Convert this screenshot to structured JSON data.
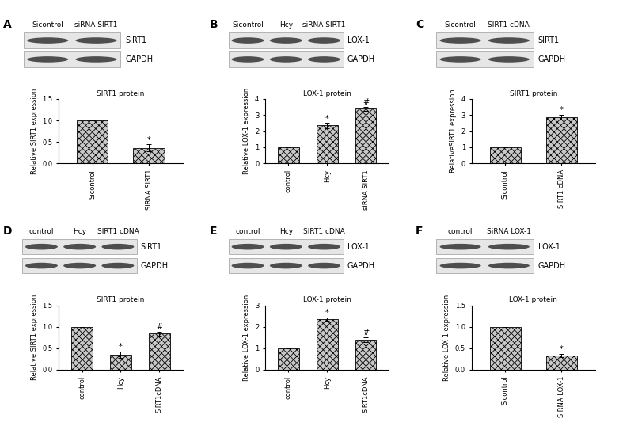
{
  "chart_data": [
    {
      "type": "bar",
      "title": "SIRT1 protein",
      "y_label": "Relative SIRT1 expression",
      "categories": [
        "Sicontrol",
        "SiRNA SIRT1"
      ],
      "values": [
        1.0,
        0.36
      ],
      "errors": [
        0,
        0.08
      ],
      "color": "#c8c8c8",
      "ylim": [
        0,
        1.5
      ],
      "yticks": [
        {
          "value": 0,
          "label": "0.0"
        },
        {
          "value": 0.5,
          "label": "0.5"
        },
        {
          "value": 1.0,
          "label": "1.0"
        },
        {
          "value": 1.5,
          "label": "1.5"
        }
      ],
      "annotations": {
        "panel": "A",
        "lanes": [
          "Sicontrol",
          "siRNA SIRT1"
        ],
        "bands": [
          "SIRT1",
          "GAPDH"
        ],
        "significance": [
          null,
          "*"
        ]
      }
    },
    {
      "type": "bar",
      "title": "LOX-1 protein",
      "y_label": "Relative LOX-1 expression",
      "categories": [
        "control",
        "Hcy",
        "siRNA SIRT1"
      ],
      "values": [
        1.0,
        2.35,
        3.4
      ],
      "errors": [
        0,
        0.15,
        0.12
      ],
      "color": "#c8c8c8",
      "ylim": [
        0,
        4
      ],
      "yticks": [
        0,
        1,
        2,
        3,
        4
      ],
      "annotations": {
        "panel": "B",
        "lanes": [
          "Sicontrol",
          "Hcy",
          "siRNA SIRT1"
        ],
        "bands": [
          "LOX-1",
          "GAPDH"
        ],
        "significance": [
          null,
          "*",
          "#"
        ]
      }
    },
    {
      "type": "bar",
      "title": "SIRT1 protein",
      "y_label": "RelativeSIRT1 expression",
      "categories": [
        "Sicontrol",
        "SIRT1 cDNA"
      ],
      "values": [
        1.0,
        2.88
      ],
      "errors": [
        0,
        0.15
      ],
      "color": "#c8c8c8",
      "ylim": [
        0,
        4
      ],
      "yticks": [
        0,
        1,
        2,
        3,
        4
      ],
      "annotations": {
        "panel": "C",
        "lanes": [
          "Sicontrol",
          "SIRT1 cDNA"
        ],
        "bands": [
          "SIRT1",
          "GAPDH"
        ],
        "significance": [
          null,
          "*"
        ]
      }
    },
    {
      "type": "bar",
      "title": "SIRT1 protein",
      "y_label": "Relative SIRT1 expression",
      "categories": [
        "control",
        "Hcy",
        "SIRT1cDNA"
      ],
      "values": [
        1.0,
        0.35,
        0.84
      ],
      "errors": [
        0,
        0.08,
        0.05
      ],
      "color": "#c8c8c8",
      "ylim": [
        0,
        1.5
      ],
      "yticks": [
        {
          "value": 0,
          "label": "0.0"
        },
        {
          "value": 0.5,
          "label": "0.5"
        },
        {
          "value": 1.0,
          "label": "1.0"
        },
        {
          "value": 1.5,
          "label": "1.5"
        }
      ],
      "annotations": {
        "panel": "D",
        "lanes": [
          "control",
          "Hcy",
          "SIRT1 cDNA"
        ],
        "bands": [
          "SIRT1",
          "GAPDH"
        ],
        "significance": [
          null,
          "*",
          "#"
        ]
      }
    },
    {
      "type": "bar",
      "title": "LOX-1 protein",
      "y_label": "Relative LOX-1 expression",
      "categories": [
        "control",
        "Hcy",
        "SIRT1cDNA"
      ],
      "values": [
        1.0,
        2.35,
        1.4
      ],
      "errors": [
        0,
        0.07,
        0.12
      ],
      "color": "#c8c8c8",
      "ylim": [
        0,
        3
      ],
      "yticks": [
        0,
        1,
        2,
        3
      ],
      "annotations": {
        "panel": "E",
        "lanes": [
          "control",
          "Hcy",
          "SIRT1 cDNA"
        ],
        "bands": [
          "LOX-1",
          "GAPDH"
        ],
        "significance": [
          null,
          "*",
          "#"
        ]
      }
    },
    {
      "type": "bar",
      "title": "LOX-1 protein",
      "y_label": "Relative LOX-1 expression",
      "categories": [
        "Sicontrol",
        "SiRNA LOX-1"
      ],
      "values": [
        1.0,
        0.33
      ],
      "errors": [
        0,
        0.04
      ],
      "color": "#c8c8c8",
      "ylim": [
        0,
        1.5
      ],
      "yticks": [
        {
          "value": 0,
          "label": "0.0"
        },
        {
          "value": 0.5,
          "label": "0.5"
        },
        {
          "value": 1.0,
          "label": "1.0"
        },
        {
          "value": 1.5,
          "label": "1.5"
        }
      ],
      "annotations": {
        "panel": "F",
        "lanes": [
          "control",
          "SiRNA LOX-1"
        ],
        "bands": [
          "LOX-1",
          "GAPDH"
        ],
        "significance": [
          null,
          "*"
        ]
      }
    }
  ]
}
